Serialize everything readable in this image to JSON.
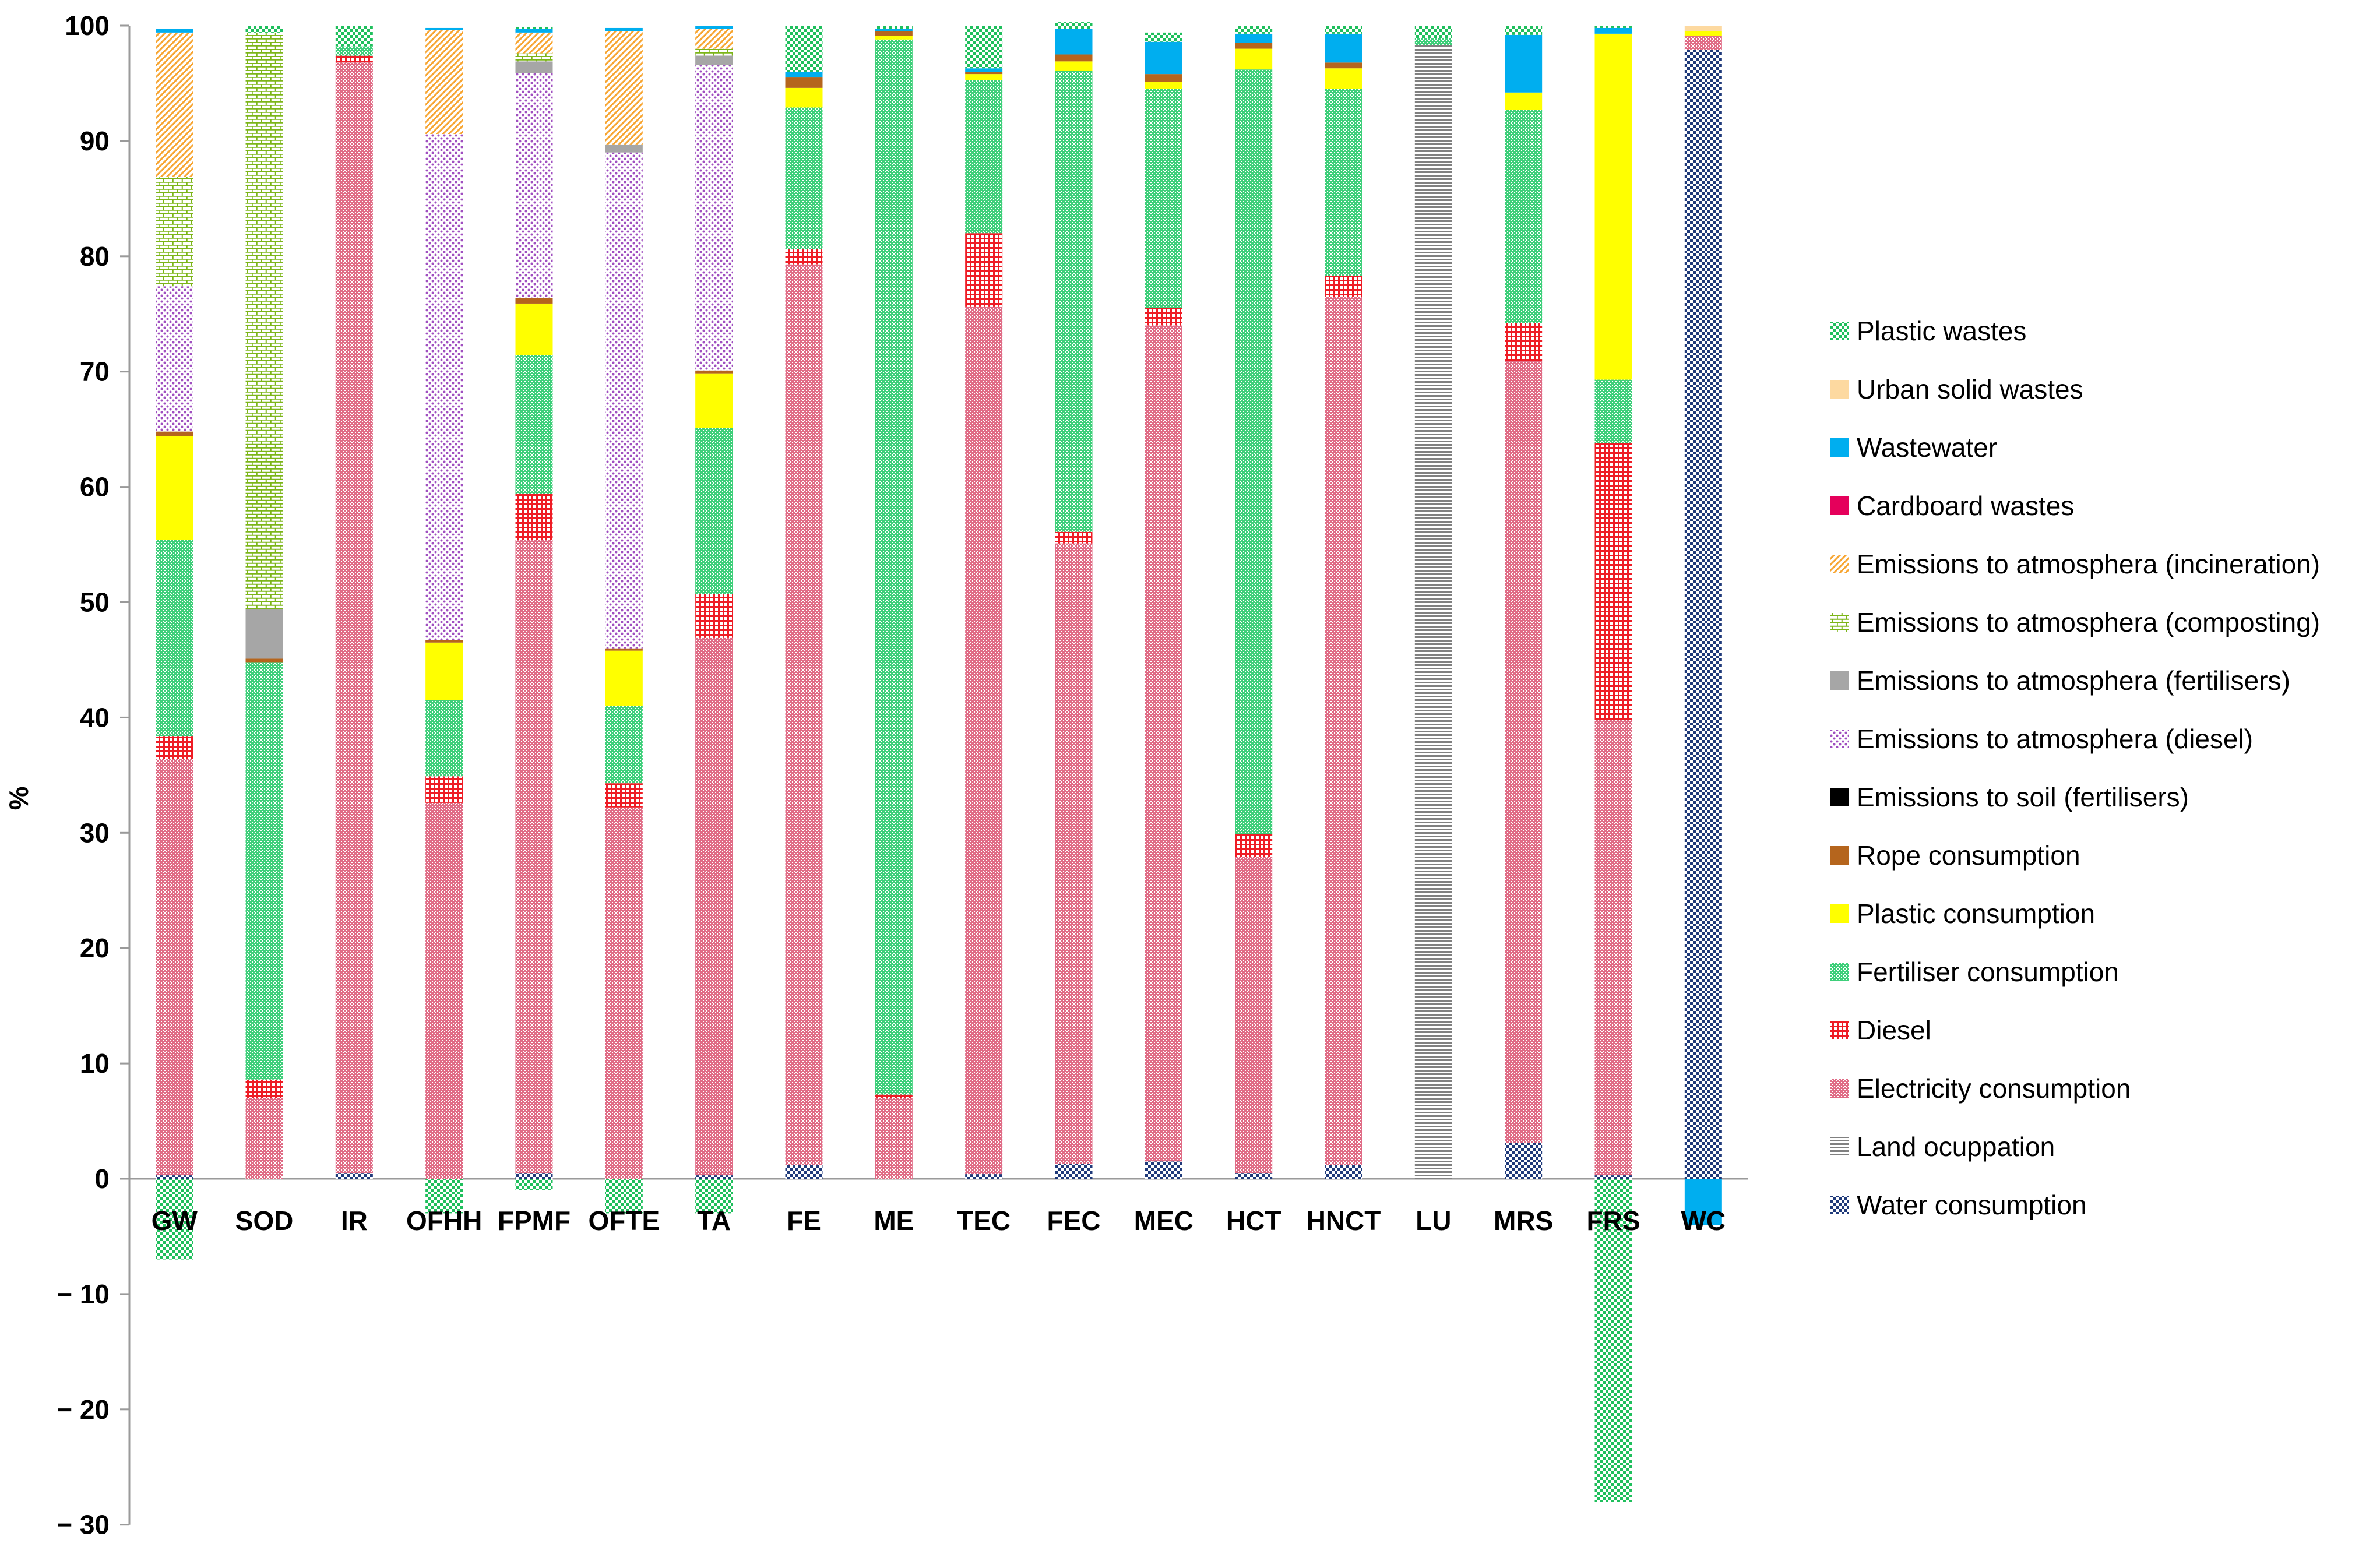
{
  "chart_data": {
    "type": "bar",
    "stacked": true,
    "title": "",
    "xlabel": "",
    "ylabel": "%",
    "ylim": [
      -30,
      100
    ],
    "yticks": [
      100,
      90,
      80,
      70,
      60,
      50,
      40,
      30,
      20,
      10,
      0,
      -10,
      -20,
      -30
    ],
    "ytick_labels": [
      "100",
      "90",
      "80",
      "70",
      "60",
      "50",
      "40",
      "30",
      "20",
      "10",
      "0",
      "− 10",
      "− 20",
      "− 30"
    ],
    "grid": false,
    "legend_position": "right",
    "categories": [
      "GW",
      "SOD",
      "IR",
      "OFHH",
      "FPMF",
      "OFTE",
      "TA",
      "FE",
      "ME",
      "TEC",
      "FEC",
      "MEC",
      "HCT",
      "HNCT",
      "LU",
      "MRS",
      "FRS",
      "WC"
    ],
    "series": [
      {
        "name": "Water consumption",
        "color": "#1f3a7a",
        "pattern": "checker",
        "values": [
          0.3,
          0,
          0.5,
          0,
          0.5,
          0,
          0.3,
          1.2,
          0,
          0.4,
          1.3,
          1.5,
          0.5,
          1.2,
          0,
          3.1,
          0.3,
          97.9
        ]
      },
      {
        "name": "Land ocuppation",
        "color": "#808080",
        "pattern": "hlines",
        "values": [
          0,
          0,
          0,
          0,
          0,
          0,
          0,
          0,
          0,
          0,
          0,
          0,
          0,
          0,
          98.3,
          0,
          0,
          0
        ]
      },
      {
        "name": "Electricity consumption",
        "color": "#e06c86",
        "pattern": "dense",
        "values": [
          36.1,
          7.0,
          96.3,
          32.6,
          54.9,
          32.2,
          46.6,
          78.1,
          7.0,
          75.2,
          53.8,
          72.5,
          27.4,
          75.3,
          0,
          67.8,
          39.5,
          1.2
        ]
      },
      {
        "name": "Diesel",
        "color": "#ee1c25",
        "pattern": "grid",
        "values": [
          2.0,
          1.6,
          0.6,
          2.3,
          4.0,
          2.1,
          3.8,
          1.3,
          0.3,
          6.4,
          1.0,
          1.5,
          2.0,
          1.8,
          0,
          3.3,
          24.0,
          0
        ]
      },
      {
        "name": "Fertiliser consumption",
        "color": "#3ecf7a",
        "pattern": "dense",
        "values": [
          17.0,
          36.2,
          0.8,
          6.6,
          12.0,
          6.7,
          14.4,
          12.3,
          91.5,
          13.3,
          40.0,
          19.0,
          66.3,
          16.2,
          0.6,
          18.5,
          5.5,
          0
        ]
      },
      {
        "name": "Plastic consumption",
        "color": "#ffff00",
        "pattern": "solid",
        "values": [
          9.0,
          0,
          0,
          5.0,
          4.5,
          4.8,
          4.7,
          1.7,
          0.3,
          0.5,
          0.8,
          0.6,
          1.8,
          1.8,
          0,
          1.5,
          30.0,
          0.4
        ]
      },
      {
        "name": "Rope consumption",
        "color": "#b5651d",
        "pattern": "solid",
        "values": [
          0.4,
          0.3,
          0,
          0.2,
          0.5,
          0.2,
          0.3,
          0.9,
          0.4,
          0.2,
          0.6,
          0.7,
          0.5,
          0.5,
          0,
          0,
          0,
          0
        ]
      },
      {
        "name": "Emissions to soil (fertilisers)",
        "color": "#000000",
        "pattern": "solid",
        "values": [
          0,
          0,
          0,
          0,
          0,
          0,
          0,
          0,
          0,
          0,
          0,
          0,
          0,
          0,
          0,
          0,
          0,
          0
        ]
      },
      {
        "name": "Emissions to atmosphera (diesel)",
        "color": "#a04fc0",
        "pattern": "dots",
        "values": [
          12.6,
          0,
          0,
          43.9,
          19.5,
          43.0,
          26.5,
          0,
          0,
          0,
          0,
          0,
          0,
          0,
          0,
          0,
          0,
          0
        ]
      },
      {
        "name": "Emissions to atmosphera (fertilisers)",
        "color": "#a6a6a6",
        "pattern": "solid",
        "values": [
          0,
          4.3,
          0,
          0,
          1.0,
          0.7,
          0.8,
          0,
          0,
          0,
          0,
          0,
          0,
          0,
          0,
          0,
          0,
          0
        ]
      },
      {
        "name": "Emissions to atmosphera (composting)",
        "color": "#7cb518",
        "pattern": "bricks",
        "values": [
          9.5,
          50.0,
          0,
          0,
          0.7,
          0,
          0.6,
          0,
          0,
          0,
          0,
          0,
          0,
          0,
          0,
          0,
          0,
          0
        ]
      },
      {
        "name": "Emissions to atmosphera (incineration)",
        "color": "#f7a531",
        "pattern": "diag",
        "values": [
          12.5,
          0,
          0,
          9.0,
          1.8,
          9.8,
          1.7,
          0,
          0,
          0,
          0,
          0,
          0,
          0,
          0,
          0,
          0,
          0
        ]
      },
      {
        "name": "Cardboard wastes",
        "color": "#e5005b",
        "pattern": "solid",
        "values": [
          0,
          0,
          0,
          0,
          0,
          0,
          0,
          0,
          0,
          0,
          0,
          0,
          0,
          0,
          0,
          0,
          0,
          0
        ]
      },
      {
        "name": "Wastewater",
        "color": "#00aeef",
        "pattern": "solid",
        "values": [
          0.3,
          0,
          0,
          0.2,
          0.3,
          0.3,
          0.3,
          0.5,
          0.2,
          0.3,
          2.2,
          2.8,
          0.8,
          2.5,
          0,
          5.0,
          0.5,
          0
        ]
      },
      {
        "name": "Urban solid wastes",
        "color": "#fdd9a0",
        "pattern": "solid",
        "values": [
          0,
          0,
          0,
          0,
          0,
          0,
          0,
          0,
          0,
          0,
          0,
          0,
          0,
          0,
          0,
          0,
          0,
          0.5
        ]
      },
      {
        "name": "Plastic wastes",
        "color": "#1fbf5c",
        "pattern": "checker",
        "values": [
          0,
          0.6,
          1.8,
          0,
          0.2,
          0,
          0,
          4.0,
          0.3,
          3.7,
          0.6,
          0.8,
          0.7,
          0.7,
          1.1,
          0.8,
          0.2,
          0
        ]
      }
    ],
    "negative_series": [
      {
        "name": "Plastic wastes",
        "color": "#1fbf5c",
        "pattern": "checker",
        "values": [
          -7.0,
          0,
          0,
          -3.0,
          -1.0,
          -3.0,
          -3.0,
          0,
          0,
          0,
          0,
          0,
          0,
          0,
          0,
          0,
          -28.0,
          0
        ]
      },
      {
        "name": "Wastewater",
        "color": "#00aeef",
        "pattern": "solid",
        "values": [
          0,
          0,
          0,
          0,
          0,
          0,
          0,
          0,
          0,
          0,
          0,
          0,
          0,
          0,
          0,
          0,
          0,
          -4.0
        ]
      }
    ],
    "legend_order": [
      "Plastic wastes",
      "Urban solid wastes",
      "Wastewater",
      "Cardboard wastes",
      "Emissions to atmosphera (incineration)",
      "Emissions to atmosphera (composting)",
      "Emissions to atmosphera (fertilisers)",
      "Emissions to atmosphera (diesel)",
      "Emissions to soil (fertilisers)",
      "Rope consumption",
      "Plastic consumption",
      "Fertiliser consumption",
      "Diesel",
      "Electricity consumption",
      "Land ocuppation",
      "Water consumption"
    ]
  }
}
